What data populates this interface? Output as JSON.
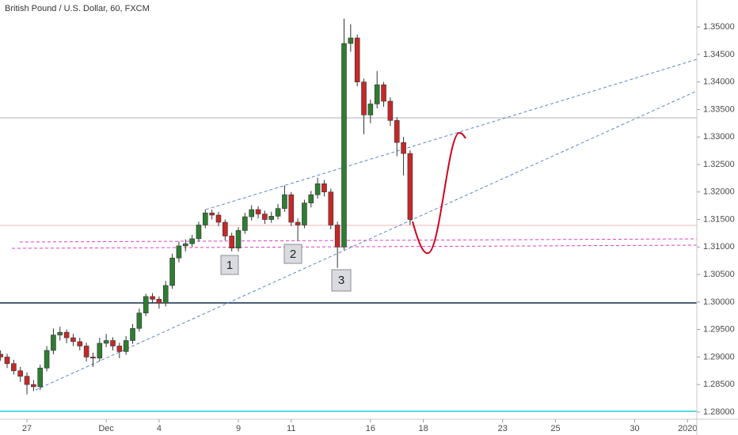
{
  "chart_data": {
    "type": "candlestick",
    "title": "British Pound / U.S. Dollar, 60, FXCM",
    "up_color": "#2e7d32",
    "down_color": "#c62828",
    "wick_color": "#333333",
    "x": [
      -1,
      -0.75,
      -0.5,
      -0.25,
      0,
      0.25,
      0.5,
      0.75,
      1,
      1.25,
      1.5,
      1.75,
      2,
      2.25,
      2.5,
      2.75,
      3,
      3.25,
      3.5,
      3.75,
      4,
      4.25,
      4.5,
      4.75,
      5,
      5.25,
      5.5,
      5.75,
      6,
      6.25,
      6.5,
      6.75,
      7,
      7.25,
      7.5,
      7.75,
      8,
      8.25,
      8.5,
      8.75,
      9,
      9.25,
      9.5,
      9.75,
      10,
      10.25,
      10.5,
      10.75,
      11,
      11.25,
      11.5,
      11.75,
      12,
      12.25,
      12.5,
      12.75,
      13,
      13.25,
      13.5,
      13.75,
      14,
      14.25,
      14.5
    ],
    "open": [
      1.2905,
      1.29,
      1.2888,
      1.2875,
      1.2865,
      1.285,
      1.2846,
      1.288,
      1.2912,
      1.294,
      1.2945,
      1.2935,
      1.2928,
      1.292,
      1.29,
      1.2898,
      1.2925,
      1.293,
      1.292,
      1.291,
      1.293,
      1.2952,
      1.298,
      1.301,
      1.3005,
      1.2998,
      1.303,
      1.308,
      1.3102,
      1.3106,
      1.3115,
      1.314,
      1.3162,
      1.3158,
      1.3145,
      1.312,
      1.3098,
      1.313,
      1.3155,
      1.3168,
      1.316,
      1.315,
      1.3156,
      1.317,
      1.3195,
      1.3145,
      1.314,
      1.318,
      1.3195,
      1.3215,
      1.32,
      1.314,
      1.31,
      1.347,
      1.348,
      1.34,
      1.334,
      1.336,
      1.3395,
      1.3365,
      1.333,
      1.329,
      1.327
    ],
    "high": [
      1.2912,
      1.2906,
      1.2895,
      1.2882,
      1.2872,
      1.2858,
      1.2886,
      1.292,
      1.2952,
      1.2955,
      1.295,
      1.2942,
      1.2935,
      1.2926,
      1.2908,
      1.2935,
      1.2942,
      1.2936,
      1.2926,
      1.2938,
      1.296,
      1.2988,
      1.3015,
      1.3016,
      1.301,
      1.3038,
      1.3088,
      1.311,
      1.3114,
      1.3122,
      1.3146,
      1.3168,
      1.3168,
      1.3164,
      1.315,
      1.3126,
      1.3136,
      1.3162,
      1.3176,
      1.3174,
      1.3166,
      1.3164,
      1.3178,
      1.3212,
      1.32,
      1.3152,
      1.3186,
      1.3202,
      1.3226,
      1.3222,
      1.3206,
      1.3146,
      1.3515,
      1.3505,
      1.3486,
      1.3406,
      1.3368,
      1.342,
      1.34,
      1.3372,
      1.3336,
      1.33,
      1.3276
    ],
    "low": [
      1.2893,
      1.288,
      1.2868,
      1.2855,
      1.2832,
      1.2838,
      1.284,
      1.2874,
      1.2905,
      1.293,
      1.2925,
      1.292,
      1.2912,
      1.2892,
      1.2882,
      1.2892,
      1.2918,
      1.2912,
      1.2898,
      1.2904,
      1.2924,
      1.2946,
      1.2974,
      1.2998,
      1.2988,
      1.2992,
      1.3024,
      1.3072,
      1.3092,
      1.31,
      1.311,
      1.3134,
      1.315,
      1.3138,
      1.3112,
      1.3092,
      1.3092,
      1.3124,
      1.3148,
      1.3152,
      1.3142,
      1.3144,
      1.315,
      1.3164,
      1.3138,
      1.3112,
      1.3134,
      1.3172,
      1.3188,
      1.3192,
      1.3132,
      1.3062,
      1.3095,
      1.3455,
      1.3392,
      1.3305,
      1.3325,
      1.3352,
      1.3355,
      1.332,
      1.3265,
      1.323,
      1.314
    ],
    "close": [
      1.29,
      1.2888,
      1.2875,
      1.2865,
      1.285,
      1.2846,
      1.288,
      1.2912,
      1.294,
      1.2945,
      1.2935,
      1.2928,
      1.292,
      1.29,
      1.2898,
      1.2925,
      1.293,
      1.292,
      1.291,
      1.293,
      1.2952,
      1.298,
      1.301,
      1.3005,
      1.2998,
      1.303,
      1.308,
      1.3102,
      1.3106,
      1.3115,
      1.314,
      1.3162,
      1.3158,
      1.3145,
      1.312,
      1.3098,
      1.313,
      1.3155,
      1.3168,
      1.316,
      1.315,
      1.3156,
      1.317,
      1.3195,
      1.3145,
      1.314,
      1.318,
      1.3195,
      1.3215,
      1.32,
      1.314,
      1.31,
      1.347,
      1.348,
      1.34,
      1.334,
      1.336,
      1.3395,
      1.3365,
      1.333,
      1.329,
      1.327,
      1.315
    ],
    "xlim": [
      -1.02,
      25.35
    ],
    "xticks": [
      {
        "value": 0,
        "label": "27"
      },
      {
        "value": 3,
        "label": "Dec"
      },
      {
        "value": 5,
        "label": "4"
      },
      {
        "value": 8,
        "label": "9"
      },
      {
        "value": 10,
        "label": "11"
      },
      {
        "value": 13,
        "label": "16"
      },
      {
        "value": 15,
        "label": "18"
      },
      {
        "value": 18,
        "label": "23"
      },
      {
        "value": 20,
        "label": "25"
      },
      {
        "value": 23,
        "label": "30"
      },
      {
        "value": 25,
        "label": "2020"
      }
    ],
    "ylim": [
      1.2787,
      1.3549
    ],
    "yticks": [
      {
        "value": 1.28,
        "label": "1.28000"
      },
      {
        "value": 1.285,
        "label": "1.28500"
      },
      {
        "value": 1.29,
        "label": "1.29000"
      },
      {
        "value": 1.295,
        "label": "1.29500"
      },
      {
        "value": 1.3,
        "label": "1.30000"
      },
      {
        "value": 1.305,
        "label": "1.30500"
      },
      {
        "value": 1.31,
        "label": "1.31000"
      },
      {
        "value": 1.315,
        "label": "1.31500"
      },
      {
        "value": 1.32,
        "label": "1.32000"
      },
      {
        "value": 1.325,
        "label": "1.32500"
      },
      {
        "value": 1.33,
        "label": "1.33000"
      },
      {
        "value": 1.335,
        "label": "1.33500"
      },
      {
        "value": 1.34,
        "label": "1.34000"
      },
      {
        "value": 1.345,
        "label": "1.34500"
      },
      {
        "value": 1.35,
        "label": "1.35000"
      }
    ],
    "annotations": [
      "1",
      "2",
      "3"
    ]
  }
}
